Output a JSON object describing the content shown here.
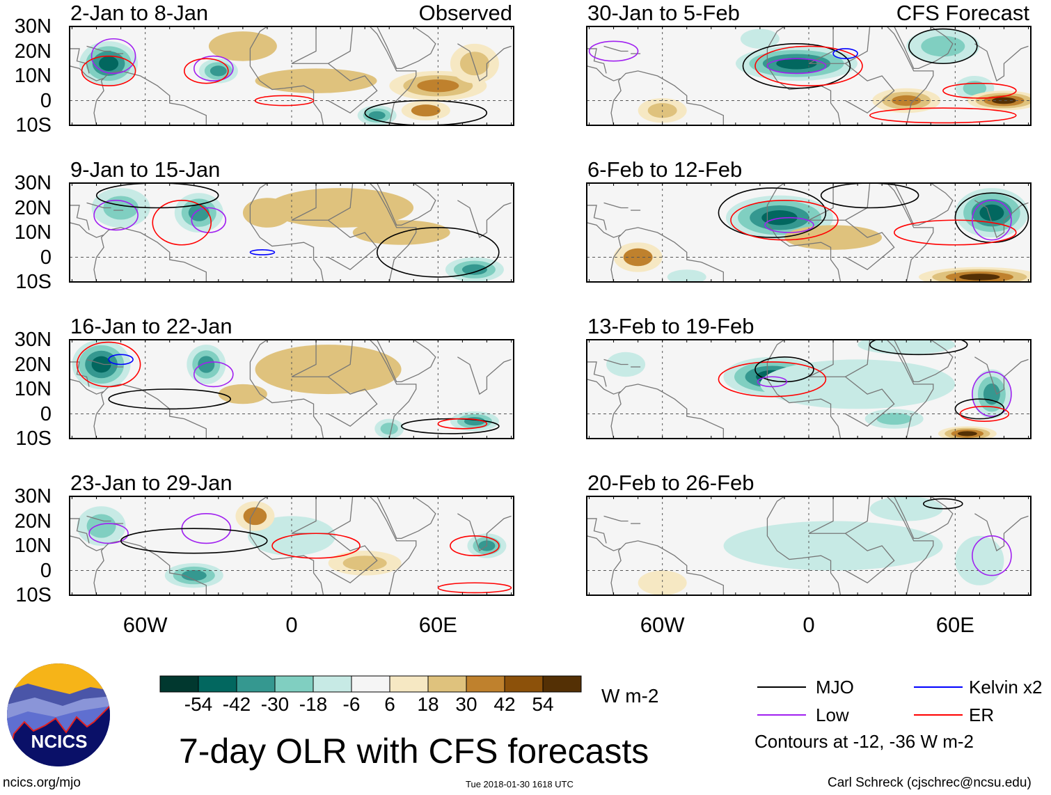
{
  "chart_data": {
    "type": "heatmap",
    "title": "7-day OLR with CFS forecasts",
    "units": "W m-2",
    "observed_label": "Observed",
    "forecast_label": "CFS Forecast",
    "lat_ticks": [
      "30N",
      "20N",
      "10N",
      "0",
      "10S"
    ],
    "lon_ticks": [
      {
        "label": "60W",
        "lon": -60
      },
      {
        "label": "0",
        "lon": 0
      },
      {
        "label": "60E",
        "lon": 60
      }
    ],
    "lon_range": [
      -91,
      91
    ],
    "lat_range": [
      -10,
      30
    ],
    "colorbar": {
      "levels": [
        -54,
        -42,
        -30,
        -18,
        -6,
        6,
        18,
        30,
        42,
        54
      ],
      "labels": [
        "-54",
        "-42",
        "-30",
        "-18",
        "-6",
        "6",
        "18",
        "30",
        "42",
        "54"
      ],
      "colors": [
        "#01382f",
        "#02675f",
        "#359890",
        "#80cfc1",
        "#c7eae5",
        "#f5f5f5",
        "#f6e8c3",
        "#dfc27d",
        "#bf812d",
        "#8c510a",
        "#543005"
      ]
    },
    "contour_legend": {
      "items": [
        {
          "label": "MJO",
          "color": "#000000"
        },
        {
          "label": "Kelvin x2",
          "color": "#0000ff"
        },
        {
          "label": "Low",
          "color": "#a020f0"
        },
        {
          "label": "ER",
          "color": "#ff0000"
        }
      ],
      "note": "Contours at -12, -36 W m-2"
    },
    "panels": [
      {
        "title": "2-Jan to 8-Jan",
        "source": "observed",
        "anomalies": [
          [
            -75,
            15,
            12,
            9,
            -48
          ],
          [
            -30,
            12,
            8,
            5,
            -36
          ],
          [
            60,
            6,
            20,
            6,
            36
          ],
          [
            55,
            -4,
            10,
            4,
            30
          ],
          [
            35,
            -6,
            8,
            4,
            -40
          ],
          [
            -20,
            22,
            14,
            6,
            18
          ],
          [
            10,
            8,
            25,
            5,
            18
          ],
          [
            75,
            15,
            10,
            8,
            24
          ]
        ],
        "contours": [
          [
            "Low",
            -73,
            18,
            9,
            7
          ],
          [
            "Low",
            -32,
            13,
            8,
            5
          ],
          [
            "ER",
            -75,
            12,
            11,
            6
          ],
          [
            "ER",
            -3,
            0,
            12,
            2
          ],
          [
            "ER",
            -35,
            12,
            9,
            5
          ],
          [
            "MJO",
            55,
            -5,
            25,
            5
          ]
        ]
      },
      {
        "title": "9-Jan to 15-Jan",
        "source": "observed",
        "anomalies": [
          [
            -70,
            20,
            12,
            8,
            -30
          ],
          [
            -38,
            18,
            10,
            8,
            -42
          ],
          [
            20,
            20,
            30,
            8,
            18
          ],
          [
            75,
            -5,
            12,
            5,
            -36
          ],
          [
            -10,
            18,
            10,
            6,
            18
          ],
          [
            45,
            10,
            20,
            5,
            18
          ]
        ],
        "contours": [
          [
            "Low",
            -72,
            17,
            9,
            6
          ],
          [
            "Low",
            -34,
            15,
            7,
            5
          ],
          [
            "ER",
            -45,
            14,
            12,
            9
          ],
          [
            "Kelvin x2",
            -12,
            2,
            5,
            1
          ],
          [
            "MJO",
            60,
            2,
            25,
            10
          ],
          [
            "MJO",
            -55,
            25,
            25,
            5
          ]
        ]
      },
      {
        "title": "16-Jan to 22-Jan",
        "source": "observed",
        "anomalies": [
          [
            -78,
            20,
            12,
            10,
            -54
          ],
          [
            -35,
            20,
            8,
            8,
            -42
          ],
          [
            15,
            18,
            30,
            10,
            18
          ],
          [
            75,
            -3,
            10,
            4,
            -42
          ],
          [
            40,
            -6,
            6,
            4,
            -30
          ],
          [
            -20,
            8,
            10,
            4,
            18
          ]
        ],
        "contours": [
          [
            "ER",
            -75,
            20,
            13,
            9
          ],
          [
            "Low",
            -32,
            16,
            8,
            5
          ],
          [
            "Kelvin x2",
            -70,
            22,
            5,
            2
          ],
          [
            "MJO",
            -50,
            6,
            25,
            4
          ],
          [
            "MJO",
            65,
            -5,
            20,
            3
          ],
          [
            "ER",
            70,
            -4,
            10,
            2
          ]
        ]
      },
      {
        "title": "23-Jan to 29-Jan",
        "source": "observed",
        "anomalies": [
          [
            -78,
            18,
            10,
            8,
            -30
          ],
          [
            -40,
            -2,
            12,
            5,
            -42
          ],
          [
            0,
            14,
            18,
            8,
            -18
          ],
          [
            30,
            3,
            15,
            5,
            24
          ],
          [
            -15,
            22,
            8,
            6,
            30
          ],
          [
            80,
            10,
            8,
            5,
            -36
          ]
        ],
        "contours": [
          [
            "Low",
            -35,
            17,
            10,
            6
          ],
          [
            "Low",
            -75,
            15,
            8,
            4
          ],
          [
            "MJO",
            -40,
            12,
            30,
            5
          ],
          [
            "ER",
            10,
            10,
            18,
            5
          ],
          [
            "ER",
            75,
            10,
            10,
            4
          ],
          [
            "ER",
            75,
            -7,
            15,
            2
          ]
        ]
      },
      {
        "title": "30-Jan to 5-Feb",
        "source": "forecast",
        "anomalies": [
          [
            -5,
            15,
            25,
            7,
            -54
          ],
          [
            55,
            22,
            15,
            7,
            -30
          ],
          [
            68,
            5,
            8,
            5,
            -30
          ],
          [
            80,
            0,
            15,
            4,
            54
          ],
          [
            40,
            0,
            14,
            5,
            36
          ],
          [
            -60,
            -4,
            10,
            5,
            24
          ],
          [
            -20,
            25,
            8,
            4,
            -18
          ]
        ],
        "contours": [
          [
            "MJO",
            -5,
            14,
            22,
            9
          ],
          [
            "ER",
            0,
            14,
            22,
            8
          ],
          [
            "Low",
            -5,
            14,
            12,
            3
          ],
          [
            "MJO",
            55,
            22,
            14,
            7
          ],
          [
            "Low",
            -80,
            20,
            10,
            4
          ],
          [
            "Kelvin x2",
            15,
            19,
            5,
            2
          ],
          [
            "ER",
            70,
            4,
            15,
            3
          ],
          [
            "ER",
            55,
            -6,
            30,
            3
          ]
        ]
      },
      {
        "title": "6-Feb to 12-Feb",
        "source": "forecast",
        "anomalies": [
          [
            -12,
            16,
            22,
            9,
            -54
          ],
          [
            75,
            18,
            15,
            10,
            -54
          ],
          [
            70,
            -8,
            25,
            4,
            54
          ],
          [
            -70,
            0,
            10,
            6,
            30
          ],
          [
            -50,
            -8,
            8,
            3,
            -18
          ],
          [
            10,
            8,
            20,
            5,
            18
          ]
        ],
        "contours": [
          [
            "MJO",
            -15,
            18,
            22,
            10
          ],
          [
            "ER",
            -10,
            15,
            22,
            8
          ],
          [
            "Low",
            -8,
            13,
            10,
            3
          ],
          [
            "MJO",
            25,
            25,
            20,
            5
          ],
          [
            "MJO",
            75,
            16,
            15,
            10
          ],
          [
            "ER",
            60,
            10,
            25,
            5
          ],
          [
            "Low",
            75,
            15,
            8,
            8
          ]
        ]
      },
      {
        "title": "13-Feb to 19-Feb",
        "source": "forecast",
        "anomalies": [
          [
            -15,
            15,
            20,
            8,
            -48
          ],
          [
            20,
            12,
            40,
            10,
            -18
          ],
          [
            75,
            8,
            8,
            10,
            -42
          ],
          [
            65,
            -8,
            12,
            3,
            54
          ],
          [
            35,
            -2,
            12,
            4,
            -30
          ],
          [
            -75,
            20,
            8,
            5,
            -18
          ],
          [
            40,
            28,
            20,
            4,
            -18
          ]
        ],
        "contours": [
          [
            "ER",
            -15,
            14,
            22,
            7
          ],
          [
            "MJO",
            -10,
            18,
            12,
            5
          ],
          [
            "Low",
            -15,
            13,
            6,
            2
          ],
          [
            "Low",
            75,
            8,
            8,
            9
          ],
          [
            "MJO",
            70,
            2,
            10,
            4
          ],
          [
            "ER",
            72,
            0,
            10,
            3
          ],
          [
            "MJO",
            45,
            28,
            20,
            4
          ]
        ]
      },
      {
        "title": "20-Feb to 26-Feb",
        "source": "forecast",
        "anomalies": [
          [
            10,
            10,
            45,
            10,
            -12
          ],
          [
            70,
            4,
            10,
            10,
            -18
          ],
          [
            -60,
            -5,
            10,
            5,
            12
          ],
          [
            40,
            25,
            15,
            5,
            -12
          ]
        ],
        "contours": [
          [
            "Low",
            75,
            6,
            8,
            8
          ],
          [
            "MJO",
            55,
            27,
            8,
            2
          ]
        ]
      }
    ]
  },
  "footer": {
    "logo_text": "NCICS",
    "url": "ncics.org/mjo",
    "timestamp": "Tue 2018-01-30 1618 UTC",
    "credit": "Carl Schreck (cjschrec@ncsu.edu)"
  }
}
